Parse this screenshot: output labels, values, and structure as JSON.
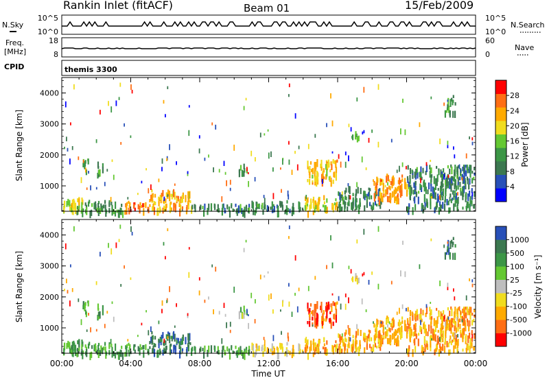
{
  "header": {
    "title": "Rankin Inlet (fitACF)",
    "beam": "Beam 01",
    "date": "15/Feb/2009"
  },
  "top_panels": {
    "nsky": {
      "label": "N.Sky",
      "ticks_left": [
        "10^5",
        "10^0"
      ],
      "ticks_right": [
        "10^5",
        "10^0"
      ],
      "right_label": "N.Search"
    },
    "freq": {
      "label_line1": "Freq.",
      "label_line2": "[MHz]",
      "ticks_left": [
        "18",
        "8"
      ],
      "ticks_right": [
        "60",
        "0"
      ],
      "right_label": "Nave"
    },
    "cpid": {
      "label": "CPID",
      "value": "themis 3300"
    }
  },
  "x_axis": {
    "label": "Time UT",
    "ticks": [
      "00:00",
      "04:00",
      "08:00",
      "12:00",
      "16:00",
      "20:00",
      "00:00"
    ]
  },
  "colors": {
    "power": [
      "#0000ff",
      "#2850b8",
      "#3c7850",
      "#3c9646",
      "#64c832",
      "#f0dc1e",
      "#ffaa00",
      "#ff6e14",
      "#ff0000"
    ],
    "velocity": [
      "#ff0000",
      "#ff6e14",
      "#ffaa00",
      "#f0dc1e",
      "#bebebe",
      "#64c832",
      "#3c9646",
      "#3c7850",
      "#2850b8"
    ]
  },
  "chart_data": [
    {
      "type": "heatmap",
      "title": "Power",
      "xlabel": "Time UT",
      "ylabel": "Slant Range [km]",
      "xlim": [
        0,
        24
      ],
      "ylim": [
        180,
        4500
      ],
      "yticks": [
        "1000",
        "2000",
        "3000",
        "4000"
      ],
      "colorbar": {
        "label": "Power [dB]",
        "ticks": [
          "4",
          "8",
          "12",
          "16",
          "20",
          "24",
          "28"
        ],
        "range": [
          0,
          32
        ]
      },
      "regions": [
        {
          "t": [
            0.0,
            1.2
          ],
          "r": [
            200,
            650
          ],
          "v": 20
        },
        {
          "t": [
            0.8,
            3.5
          ],
          "r": [
            200,
            550
          ],
          "v": 12
        },
        {
          "t": [
            3.6,
            5.0
          ],
          "r": [
            200,
            550
          ],
          "v": 26
        },
        {
          "t": [
            5.0,
            7.5
          ],
          "r": [
            250,
            900
          ],
          "v": 22
        },
        {
          "t": [
            7.5,
            11.0
          ],
          "r": [
            200,
            450
          ],
          "v": 10
        },
        {
          "t": [
            11.0,
            14.0
          ],
          "r": [
            200,
            550
          ],
          "v": 10
        },
        {
          "t": [
            14.0,
            16.0
          ],
          "r": [
            200,
            700
          ],
          "v": 20
        },
        {
          "t": [
            14.2,
            16.0
          ],
          "r": [
            1150,
            1900
          ],
          "v": 22
        },
        {
          "t": [
            16.0,
            18.5
          ],
          "r": [
            300,
            1000
          ],
          "v": 10
        },
        {
          "t": [
            18.0,
            20.0
          ],
          "r": [
            600,
            1400
          ],
          "v": 24
        },
        {
          "t": [
            20.0,
            23.9
          ],
          "r": [
            300,
            1700
          ],
          "v": 10
        },
        {
          "t": [
            1.2,
            1.5
          ],
          "r": [
            1500,
            1900
          ],
          "v": 14
        },
        {
          "t": [
            2.0,
            2.4
          ],
          "r": [
            1400,
            1800
          ],
          "v": 12
        },
        {
          "t": [
            10.2,
            10.7
          ],
          "r": [
            1500,
            1800
          ],
          "v": 12
        },
        {
          "t": [
            22.2,
            22.8
          ],
          "r": [
            3400,
            4000
          ],
          "v": 12
        },
        {
          "t": [
            16.8,
            17.2
          ],
          "r": [
            2400,
            2800
          ],
          "v": 14
        }
      ]
    },
    {
      "type": "heatmap",
      "title": "Velocity",
      "xlabel": "Time UT",
      "ylabel": "Slant Range [km]",
      "xlim": [
        0,
        24
      ],
      "ylim": [
        180,
        4500
      ],
      "yticks": [
        "1000",
        "2000",
        "3000",
        "4000"
      ],
      "colorbar": {
        "label": "Velocity [m s⁻¹]",
        "ticks": [
          "-1000",
          "-500",
          "-100",
          "-25",
          "25",
          "100",
          "500",
          "1000"
        ]
      },
      "regions": [
        {
          "t": [
            0.0,
            1.2
          ],
          "r": [
            200,
            650
          ],
          "v": 6
        },
        {
          "t": [
            0.8,
            3.5
          ],
          "r": [
            200,
            550
          ],
          "v": 6
        },
        {
          "t": [
            3.6,
            5.0
          ],
          "r": [
            200,
            550
          ],
          "v": 6
        },
        {
          "t": [
            5.0,
            7.5
          ],
          "r": [
            250,
            900
          ],
          "v": 7
        },
        {
          "t": [
            7.5,
            11.0
          ],
          "r": [
            200,
            450
          ],
          "v": 6
        },
        {
          "t": [
            11.0,
            14.0
          ],
          "r": [
            200,
            550
          ],
          "v": 3
        },
        {
          "t": [
            14.0,
            16.0
          ],
          "r": [
            200,
            700
          ],
          "v": 2
        },
        {
          "t": [
            14.2,
            16.0
          ],
          "r": [
            1150,
            1900
          ],
          "v": 1
        },
        {
          "t": [
            16.0,
            18.5
          ],
          "r": [
            300,
            1000
          ],
          "v": 2
        },
        {
          "t": [
            18.0,
            20.0
          ],
          "r": [
            600,
            1400
          ],
          "v": 2
        },
        {
          "t": [
            20.0,
            23.9
          ],
          "r": [
            300,
            1700
          ],
          "v": 2
        },
        {
          "t": [
            1.2,
            1.5
          ],
          "r": [
            1500,
            1900
          ],
          "v": 6
        },
        {
          "t": [
            2.0,
            2.4
          ],
          "r": [
            1400,
            1800
          ],
          "v": 6
        },
        {
          "t": [
            10.2,
            10.7
          ],
          "r": [
            1500,
            1800
          ],
          "v": 5
        },
        {
          "t": [
            22.2,
            22.8
          ],
          "r": [
            3400,
            4000
          ],
          "v": 7
        },
        {
          "t": [
            16.8,
            17.2
          ],
          "r": [
            2400,
            2800
          ],
          "v": 3
        }
      ]
    }
  ]
}
